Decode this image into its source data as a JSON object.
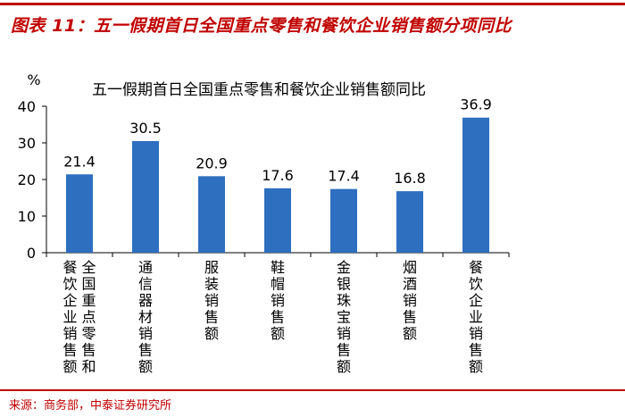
{
  "figure": {
    "title": "图表 11：五一假期首日全国重点零售和餐饮企业销售额分项同比",
    "source": "来源：商务部，中泰证券研究所"
  },
  "colors": {
    "accent": "#c00000",
    "bar": "#2e6fbf"
  },
  "chart_data": {
    "type": "bar",
    "title": "五一假期首日全国重点零售和餐饮企业销售额同比",
    "ylabel": "%",
    "xlabel": "",
    "ylim": [
      0,
      40
    ],
    "yticks": [
      0,
      10,
      20,
      30,
      40
    ],
    "grid": false,
    "categories": [
      "全国重点零售和餐饮企业销售额",
      "通信器材销售额",
      "服装销售额",
      "鞋帽销售额",
      "金银珠宝销售额",
      "烟酒销售额",
      "餐饮企业销售额"
    ],
    "values": [
      21.4,
      30.5,
      20.9,
      17.6,
      17.4,
      16.8,
      36.9
    ],
    "value_labels": [
      "21.4",
      "30.5",
      "20.9",
      "17.6",
      "17.4",
      "16.8",
      "36.9"
    ]
  }
}
